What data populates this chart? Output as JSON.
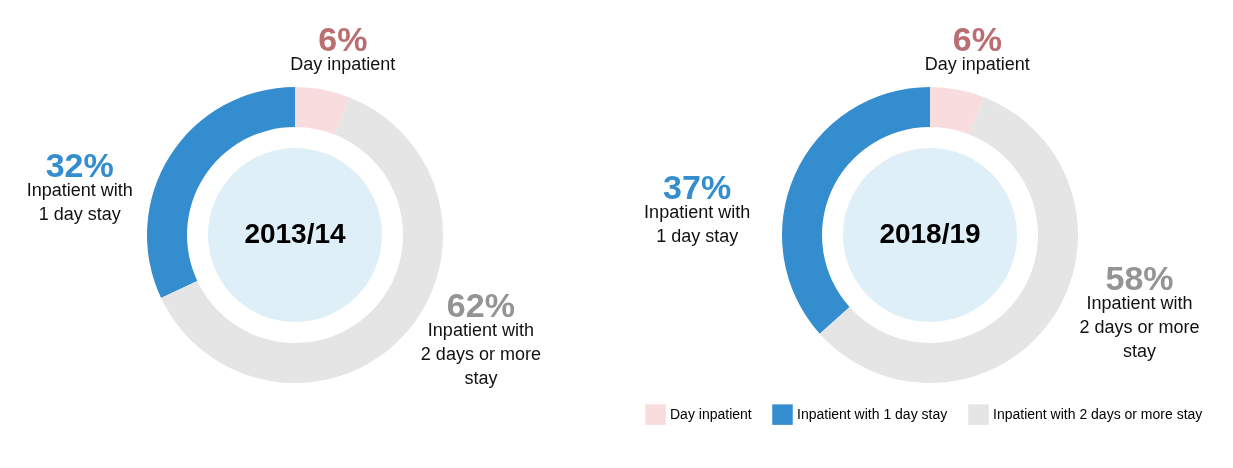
{
  "chart_data": [
    {
      "type": "donut",
      "title": "2013/14",
      "categories": [
        "Day inpatient",
        "Inpatient with 1 day stay",
        "Inpatient with 2 days or more stay"
      ],
      "values": [
        6,
        32,
        62
      ],
      "colors": [
        "#f9dcdd",
        "#338dcf",
        "#e5e5e5"
      ],
      "value_labels": [
        "6%",
        "32%",
        "62%"
      ]
    },
    {
      "type": "donut",
      "title": "2018/19",
      "categories": [
        "Day inpatient",
        "Inpatient with 1 day stay",
        "Inpatient with 2 days or more stay"
      ],
      "values": [
        6,
        37,
        58
      ],
      "colors": [
        "#f9dcdd",
        "#338dcf",
        "#e5e5e5"
      ],
      "value_labels": [
        "6%",
        "37%",
        "58%"
      ],
      "legend": "bottom right"
    }
  ]
}
